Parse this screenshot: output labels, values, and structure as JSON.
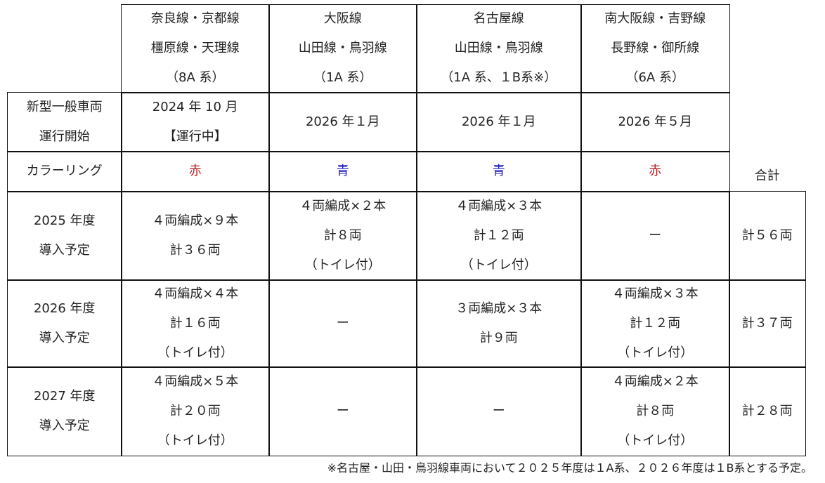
{
  "header": {
    "lines": [
      {
        "l1": "奈良線・京都線",
        "l2": "橿原線・天理線",
        "l3": "（8A 系）"
      },
      {
        "l1": "大阪線",
        "l2": "山田線・鳥羽線",
        "l3": "（1A 系）"
      },
      {
        "l1": "名古屋線",
        "l2": "山田線・鳥羽線",
        "l3": "（1A 系、１B系※）"
      },
      {
        "l1": "南大阪線・吉野線",
        "l2": "長野線・御所線",
        "l3": "（6A 系）"
      }
    ],
    "total": "合計"
  },
  "start": {
    "label1": "新型一般車両",
    "label2": "運行開始",
    "v0a": "2024 年 10 月",
    "v0b": "【運行中】",
    "v1": "2026 年１月",
    "v2": "2026 年１月",
    "v3": "2026 年５月"
  },
  "color": {
    "label": "カラーリング",
    "v0": "赤",
    "v1": "青",
    "v2": "青",
    "v3": "赤",
    "red": "#c0161c",
    "blue": "#1c1cc0"
  },
  "rows": [
    {
      "label1": "2025 年度",
      "label2": "導入予定",
      "cells": [
        [
          "４両編成×９本",
          "計３６両"
        ],
        [
          "４両編成×２本",
          "計８両",
          "（トイレ付）"
        ],
        [
          "４両編成×３本",
          "計１２両",
          "（トイレ付）"
        ],
        [
          "ー"
        ]
      ],
      "total": "計５６両"
    },
    {
      "label1": "2026 年度",
      "label2": "導入予定",
      "cells": [
        [
          "４両編成×４本",
          "計１６両",
          "（トイレ付）"
        ],
        [
          "ー"
        ],
        [
          "３両編成×３本",
          "計９両"
        ],
        [
          "４両編成×３本",
          "計１２両",
          "（トイレ付）"
        ]
      ],
      "total": "計３７両"
    },
    {
      "label1": "2027 年度",
      "label2": "導入予定",
      "cells": [
        [
          "４両編成×５本",
          "計２０両",
          "（トイレ付）"
        ],
        [
          "ー"
        ],
        [
          "ー"
        ],
        [
          "４両編成×２本",
          "計８両",
          "（トイレ付）"
        ]
      ],
      "total": "計２８両"
    }
  ],
  "footnote": "※名古屋・山田・鳥羽線車両において２０２５年度は１A系、２０２６年度は１B系とする予定。"
}
